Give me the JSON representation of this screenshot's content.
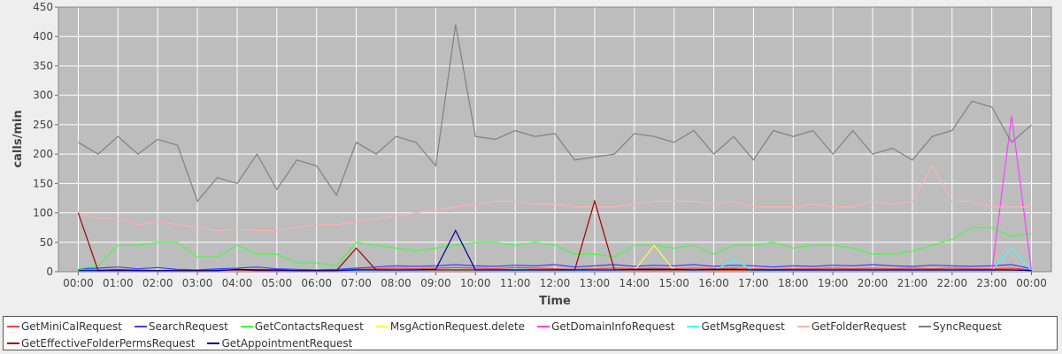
{
  "chart_data": {
    "type": "line",
    "y_label": "calls/min",
    "x_label": "Time",
    "xlim": [
      -0.5,
      24.5
    ],
    "ylim": [
      0,
      450
    ],
    "yticks": [
      0,
      50,
      100,
      150,
      200,
      250,
      300,
      350,
      400,
      450
    ],
    "xticks": [
      {
        "value": 0,
        "label": "00:00"
      },
      {
        "value": 1,
        "label": "01:00"
      },
      {
        "value": 2,
        "label": "02:00"
      },
      {
        "value": 3,
        "label": "03:00"
      },
      {
        "value": 4,
        "label": "04:00"
      },
      {
        "value": 5,
        "label": "05:00"
      },
      {
        "value": 6,
        "label": "06:00"
      },
      {
        "value": 7,
        "label": "07:00"
      },
      {
        "value": 8,
        "label": "08:00"
      },
      {
        "value": 9,
        "label": "09:00"
      },
      {
        "value": 10,
        "label": "10:00"
      },
      {
        "value": 11,
        "label": "11:00"
      },
      {
        "value": 12,
        "label": "12:00"
      },
      {
        "value": 13,
        "label": "13:00"
      },
      {
        "value": 14,
        "label": "14:00"
      },
      {
        "value": 15,
        "label": "15:00"
      },
      {
        "value": 16,
        "label": "16:00"
      },
      {
        "value": 17,
        "label": "17:00"
      },
      {
        "value": 18,
        "label": "18:00"
      },
      {
        "value": 19,
        "label": "19:00"
      },
      {
        "value": 20,
        "label": "20:00"
      },
      {
        "value": 21,
        "label": "21:00"
      },
      {
        "value": 22,
        "label": "22:00"
      },
      {
        "value": 23,
        "label": "23:00"
      },
      {
        "value": 24,
        "label": "00:00"
      }
    ],
    "grid": true,
    "x": [
      0,
      0.5,
      1,
      1.5,
      2,
      2.5,
      3,
      3.5,
      4,
      4.5,
      5,
      5.5,
      6,
      6.5,
      7,
      7.5,
      8,
      8.5,
      9,
      9.5,
      10,
      10.5,
      11,
      11.5,
      12,
      12.5,
      13,
      13.5,
      14,
      14.5,
      15,
      15.5,
      16,
      16.5,
      17,
      17.5,
      18,
      18.5,
      19,
      19.5,
      20,
      20.5,
      21,
      21.5,
      22,
      22.5,
      23,
      23.5,
      24
    ],
    "series": [
      {
        "name": "GetMiniCalRequest",
        "color": "#ff4040",
        "values": [
          3,
          3,
          4,
          3,
          2,
          3,
          2,
          3,
          3,
          4,
          3,
          2,
          2,
          3,
          4,
          5,
          6,
          5,
          6,
          7,
          6,
          5,
          7,
          6,
          5,
          4,
          5,
          6,
          5,
          6,
          5,
          6,
          5,
          6,
          5,
          4,
          5,
          5,
          6,
          5,
          6,
          5,
          6,
          5,
          6,
          5,
          5,
          6,
          3
        ]
      },
      {
        "name": "SearchRequest",
        "color": "#4040ff",
        "values": [
          5,
          6,
          8,
          5,
          7,
          4,
          3,
          5,
          6,
          8,
          5,
          4,
          3,
          4,
          6,
          8,
          10,
          9,
          10,
          12,
          10,
          9,
          11,
          10,
          12,
          8,
          10,
          12,
          9,
          11,
          10,
          12,
          9,
          11,
          10,
          8,
          10,
          9,
          11,
          10,
          12,
          10,
          9,
          11,
          10,
          9,
          10,
          12,
          5
        ]
      },
      {
        "name": "GetContactsRequest",
        "color": "#40ff40",
        "values": [
          5,
          10,
          45,
          45,
          50,
          50,
          25,
          25,
          45,
          30,
          30,
          15,
          15,
          10,
          50,
          45,
          40,
          35,
          40,
          45,
          50,
          50,
          45,
          50,
          45,
          30,
          30,
          25,
          45,
          45,
          40,
          45,
          30,
          45,
          45,
          50,
          40,
          45,
          45,
          40,
          30,
          30,
          35,
          45,
          55,
          75,
          75,
          60,
          65
        ]
      },
      {
        "name": "MsgActionRequest.delete",
        "color": "#ffff40",
        "values": [
          1,
          1,
          1,
          1,
          1,
          1,
          1,
          1,
          1,
          1,
          1,
          1,
          1,
          1,
          1,
          1,
          1,
          1,
          1,
          1,
          1,
          1,
          1,
          1,
          1,
          1,
          1,
          1,
          2,
          45,
          2,
          1,
          1,
          1,
          1,
          1,
          1,
          1,
          1,
          1,
          1,
          1,
          1,
          1,
          1,
          1,
          1,
          1,
          1
        ]
      },
      {
        "name": "GetDomainInfoRequest",
        "color": "#ff40ff",
        "values": [
          0,
          0,
          0,
          0,
          0,
          0,
          0,
          0,
          0,
          0,
          0,
          0,
          0,
          0,
          0,
          0,
          0,
          0,
          0,
          0,
          0,
          0,
          0,
          0,
          0,
          0,
          0,
          0,
          0,
          0,
          0,
          0,
          0,
          0,
          0,
          0,
          0,
          0,
          0,
          0,
          0,
          0,
          0,
          0,
          0,
          0,
          0,
          265,
          0
        ]
      },
      {
        "name": "GetMsgRequest",
        "color": "#40ffff",
        "values": [
          2,
          2,
          2,
          2,
          2,
          2,
          2,
          2,
          2,
          2,
          2,
          2,
          2,
          2,
          2,
          2,
          2,
          2,
          2,
          2,
          2,
          2,
          2,
          2,
          2,
          2,
          2,
          2,
          2,
          2,
          2,
          2,
          2,
          20,
          2,
          2,
          2,
          2,
          2,
          2,
          2,
          2,
          2,
          2,
          2,
          2,
          2,
          40,
          2
        ]
      },
      {
        "name": "GetFolderRequest",
        "color": "#ffb0b0",
        "values": [
          100,
          90,
          90,
          80,
          85,
          80,
          75,
          70,
          72,
          70,
          70,
          75,
          80,
          80,
          85,
          90,
          95,
          100,
          105,
          110,
          115,
          120,
          120,
          115,
          115,
          110,
          110,
          110,
          115,
          120,
          120,
          120,
          115,
          120,
          110,
          110,
          110,
          115,
          110,
          110,
          120,
          115,
          120,
          180,
          120,
          120,
          110,
          110,
          110
        ]
      },
      {
        "name": "SyncRequest",
        "color": "#808080",
        "values": [
          220,
          200,
          230,
          200,
          225,
          215,
          120,
          160,
          150,
          200,
          140,
          190,
          180,
          130,
          220,
          200,
          230,
          220,
          180,
          420,
          230,
          225,
          240,
          230,
          235,
          190,
          195,
          200,
          235,
          230,
          220,
          240,
          200,
          230,
          190,
          240,
          230,
          240,
          200,
          240,
          200,
          210,
          190,
          230,
          240,
          290,
          280,
          220,
          250
        ]
      },
      {
        "name": "GetEffectiveFolderPermsRequest",
        "color": "#a00000",
        "values": [
          100,
          2,
          3,
          2,
          2,
          2,
          2,
          2,
          3,
          2,
          2,
          2,
          2,
          2,
          40,
          3,
          3,
          3,
          3,
          3,
          3,
          3,
          3,
          3,
          3,
          3,
          120,
          3,
          3,
          3,
          3,
          3,
          3,
          3,
          3,
          3,
          3,
          3,
          3,
          3,
          3,
          3,
          3,
          3,
          3,
          3,
          3,
          3,
          2
        ]
      },
      {
        "name": "GetAppointmentRequest",
        "color": "#000090",
        "values": [
          2,
          2,
          2,
          2,
          2,
          2,
          2,
          2,
          4,
          3,
          3,
          2,
          2,
          2,
          3,
          3,
          3,
          3,
          4,
          70,
          3,
          3,
          3,
          3,
          3,
          3,
          3,
          3,
          4,
          4,
          4,
          3,
          4,
          4,
          3,
          3,
          3,
          3,
          3,
          3,
          3,
          3,
          3,
          3,
          3,
          3,
          3,
          3,
          2
        ]
      }
    ]
  }
}
